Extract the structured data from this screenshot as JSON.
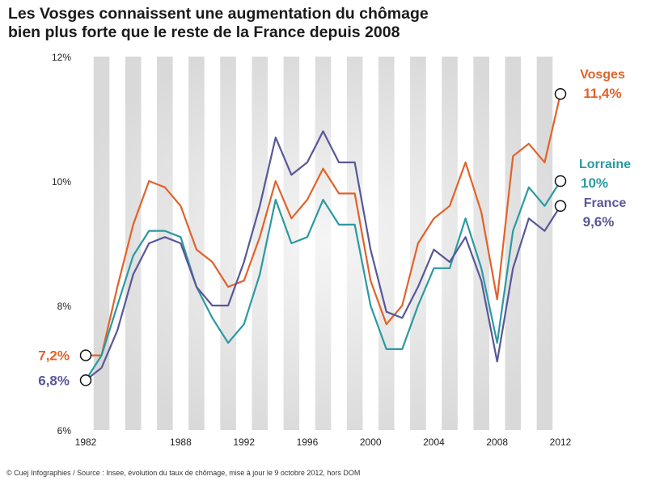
{
  "title_line1": "Les Vosges connaissent une augmentation du chômage",
  "title_line2": "bien plus forte que le reste de la France depuis 2008",
  "source": "© Cuej Infographies / Source : Insee, évolution du taux de chômage, mise à jour le 9 octobre 2012, hors DOM",
  "chart_data": {
    "type": "line",
    "title": "Les Vosges connaissent une augmentation du chômage bien plus forte que le reste de la France depuis 2008",
    "x": [
      1982,
      1983,
      1984,
      1985,
      1986,
      1987,
      1988,
      1989,
      1990,
      1991,
      1992,
      1993,
      1994,
      1995,
      1996,
      1997,
      1998,
      1999,
      2000,
      2001,
      2002,
      2003,
      2004,
      2005,
      2006,
      2007,
      2008,
      2009,
      2010,
      2011,
      2012
    ],
    "xticks": [
      1982,
      1988,
      1992,
      1996,
      2000,
      2004,
      2008,
      2012
    ],
    "xtick_labels": [
      "1982",
      "1988",
      "1992",
      "1996",
      "2000",
      "2004",
      "2008",
      "2012"
    ],
    "xlim": [
      1982,
      2012
    ],
    "ylim": [
      6,
      12
    ],
    "yticks": [
      6,
      8,
      10,
      12
    ],
    "ytick_labels": [
      "6%",
      "8%",
      "10%",
      "12%"
    ],
    "grid": "alternating vertical bands",
    "series": [
      {
        "name": "Vosges",
        "color": "#e0632a",
        "values": [
          7.2,
          7.2,
          8.3,
          9.3,
          10.0,
          9.9,
          9.6,
          8.9,
          8.7,
          8.3,
          8.4,
          9.1,
          10.0,
          9.4,
          9.7,
          10.2,
          9.8,
          9.8,
          8.4,
          7.7,
          8.0,
          9.0,
          9.4,
          9.6,
          10.3,
          9.5,
          8.1,
          10.4,
          10.6,
          10.3,
          11.4
        ],
        "start_label": "7,2%",
        "end_label_name": "Vosges",
        "end_label_value": "11,4%"
      },
      {
        "name": "Lorraine",
        "color": "#2b9aa0",
        "values": [
          6.8,
          7.2,
          8.0,
          8.8,
          9.2,
          9.2,
          9.1,
          8.3,
          7.8,
          7.4,
          7.7,
          8.5,
          9.7,
          9.0,
          9.1,
          9.7,
          9.3,
          9.3,
          8.0,
          7.3,
          7.3,
          8.0,
          8.6,
          8.6,
          9.4,
          8.6,
          7.4,
          9.2,
          9.9,
          9.6,
          10.0
        ],
        "end_label_name": "Lorraine",
        "end_label_value": "10%"
      },
      {
        "name": "France",
        "color": "#58579a",
        "values": [
          6.8,
          7.0,
          7.6,
          8.5,
          9.0,
          9.1,
          9.0,
          8.3,
          8.0,
          8.0,
          8.7,
          9.6,
          10.7,
          10.1,
          10.3,
          10.8,
          10.3,
          10.3,
          8.9,
          7.9,
          7.8,
          8.3,
          8.9,
          8.7,
          9.1,
          8.4,
          7.1,
          8.6,
          9.4,
          9.2,
          9.6
        ],
        "start_label": "6,8%",
        "end_label_name": "France",
        "end_label_value": "9,6%"
      }
    ]
  }
}
